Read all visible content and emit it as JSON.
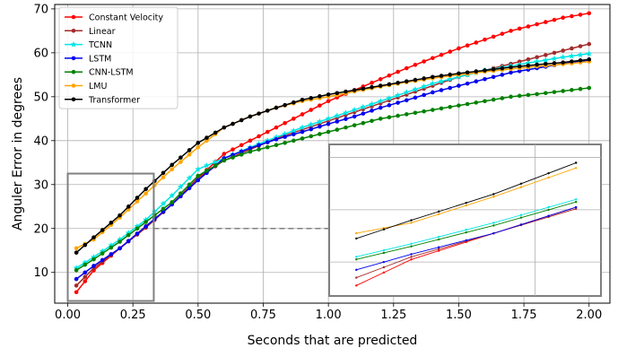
{
  "chart_data": {
    "type": "line",
    "xlabel": "Seconds that are predicted",
    "ylabel": "Anguler Error in degrees",
    "xlim": [
      -0.05,
      2.08
    ],
    "ylim": [
      3,
      71
    ],
    "xticks": [
      "0.00",
      "0.25",
      "0.50",
      "0.75",
      "1.00",
      "1.25",
      "1.50",
      "1.75",
      "2.00"
    ],
    "yticks": [
      "10",
      "20",
      "30",
      "40",
      "50",
      "60",
      "70"
    ],
    "grid": true,
    "legend_position": "top-left",
    "x_range": [
      0.033,
      2.0
    ],
    "num_points": 60,
    "series": [
      {
        "name": "Constant Velocity",
        "color": "#ff0000",
        "marker": "circle",
        "x": [
          0.033,
          0.1,
          0.2,
          0.3,
          0.4,
          0.5,
          0.6,
          0.7,
          0.8,
          0.9,
          1.0,
          1.1,
          1.2,
          1.3,
          1.4,
          1.5,
          1.6,
          1.7,
          1.8,
          1.9,
          2.0
        ],
        "y": [
          5.5,
          10.5,
          15.5,
          20.5,
          25.5,
          31.5,
          37,
          40,
          43,
          46,
          49,
          51.5,
          54,
          56.5,
          58.8,
          61,
          63,
          65,
          66.5,
          68,
          69
        ]
      },
      {
        "name": "Linear",
        "color": "#a52a2a",
        "marker": "circle",
        "x": [
          0.033,
          0.1,
          0.2,
          0.3,
          0.4,
          0.5,
          0.6,
          0.7,
          0.8,
          0.9,
          1.0,
          1.1,
          1.2,
          1.3,
          1.4,
          1.5,
          1.6,
          1.7,
          1.8,
          1.9,
          2.0
        ],
        "y": [
          7.0,
          11,
          15.5,
          20.2,
          25.5,
          31.5,
          35.5,
          38,
          40.5,
          42.5,
          44.5,
          46.5,
          48.5,
          50.5,
          52.5,
          54.5,
          56,
          57.5,
          59,
          60.5,
          62
        ]
      },
      {
        "name": "TCNN",
        "color": "#00e5e5",
        "marker": "star",
        "x": [
          0.033,
          0.1,
          0.2,
          0.3,
          0.4,
          0.5,
          0.6,
          0.7,
          0.8,
          0.9,
          1.0,
          1.1,
          1.2,
          1.3,
          1.4,
          1.5,
          1.6,
          1.7,
          1.8,
          1.9,
          2.0
        ],
        "y": [
          11.0,
          13.5,
          17.5,
          22,
          27.5,
          33.5,
          36,
          38.5,
          40.8,
          43,
          45,
          47,
          49,
          51,
          53,
          54.5,
          56,
          57,
          58,
          59,
          59.8
        ]
      },
      {
        "name": "LSTM",
        "color": "#0000ee",
        "marker": "circle",
        "x": [
          0.033,
          0.1,
          0.2,
          0.3,
          0.4,
          0.5,
          0.6,
          0.7,
          0.8,
          0.9,
          1.0,
          1.1,
          1.2,
          1.3,
          1.4,
          1.5,
          1.6,
          1.7,
          1.8,
          1.9,
          2.0
        ],
        "y": [
          8.5,
          11.5,
          15.5,
          20.5,
          25.5,
          31,
          36,
          38.3,
          40.3,
          42,
          43.8,
          45.5,
          47.5,
          49.2,
          51,
          52.5,
          54,
          55.5,
          56.5,
          57.5,
          58.3
        ]
      },
      {
        "name": "CNN-LSTM",
        "color": "#008000",
        "marker": "circle",
        "x": [
          0.033,
          0.1,
          0.2,
          0.3,
          0.4,
          0.5,
          0.6,
          0.7,
          0.8,
          0.9,
          1.0,
          1.1,
          1.2,
          1.3,
          1.4,
          1.5,
          1.6,
          1.7,
          1.8,
          1.9,
          2.0
        ],
        "y": [
          10.5,
          13,
          17,
          21.5,
          26,
          32,
          35.5,
          37.5,
          39,
          40.5,
          42,
          43.5,
          45,
          46,
          47,
          48,
          49,
          50,
          50.6,
          51.3,
          52
        ]
      },
      {
        "name": "LMU",
        "color": "#ffa500",
        "marker": "circle",
        "x": [
          0.033,
          0.1,
          0.2,
          0.3,
          0.4,
          0.5,
          0.6,
          0.7,
          0.8,
          0.9,
          1.0,
          1.1,
          1.2,
          1.3,
          1.4,
          1.5,
          1.6,
          1.7,
          1.8,
          1.9,
          2.0
        ],
        "y": [
          15.5,
          17.5,
          22.5,
          28,
          33.5,
          38.5,
          43,
          45.5,
          47.5,
          49,
          50,
          51.2,
          52.3,
          53.3,
          54.2,
          55,
          55.7,
          56.3,
          56.9,
          57.4,
          58
        ]
      },
      {
        "name": "Transformer",
        "color": "#000000",
        "marker": "circle",
        "x": [
          0.033,
          0.1,
          0.2,
          0.3,
          0.4,
          0.5,
          0.6,
          0.7,
          0.8,
          0.9,
          1.0,
          1.1,
          1.2,
          1.3,
          1.4,
          1.5,
          1.6,
          1.7,
          1.8,
          1.9,
          2.0
        ],
        "y": [
          14.5,
          18,
          23,
          29,
          34.5,
          39.5,
          43,
          45.5,
          47.5,
          49.3,
          50.5,
          51.5,
          52.5,
          53.5,
          54.5,
          55.3,
          56,
          56.7,
          57.3,
          57.8,
          58.5
        ]
      }
    ],
    "inset": {
      "source_rect": {
        "x": [
          0.0,
          0.33
        ],
        "y": [
          3.5,
          32.5
        ]
      },
      "connector_y": 20,
      "frame_color": "#808080"
    }
  }
}
